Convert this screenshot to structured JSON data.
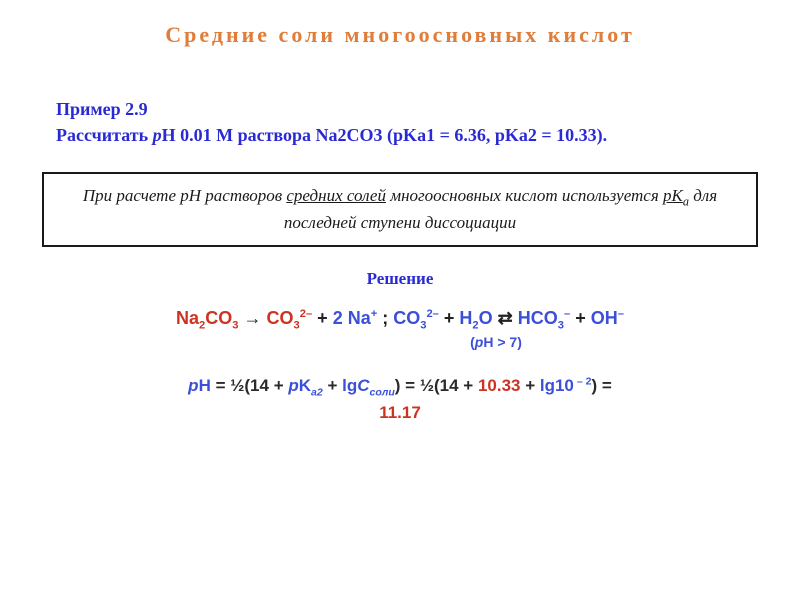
{
  "colors": {
    "title": "#e07d3a",
    "problem": "#2a2ad4",
    "rulebox_text": "#1a1a1a",
    "solution_label": "#2a2ad4",
    "eq_blue": "#3b4fd8",
    "eq_red": "#cc3322",
    "eq_black": "#222222",
    "formula_blue": "#3b4fd8",
    "formula_red": "#cc3322",
    "formula_black": "#2a2a2a"
  },
  "title": "Средние соли многоосновных кислот",
  "problem": {
    "line1": "Пример 2.9",
    "line2_a": "Рассчитать ",
    "line2_b_it": "p",
    "line2_c": "H 0.01 M раствора Na",
    "line2_d_sub": "2",
    "line2_e": "CO",
    "line2_f_sub": "3",
    "line2_g": " (pK",
    "line2_h_sub": "a1",
    "line2_i": " = 6.36, pK",
    "line2_j_sub": "a2",
    "line2_k": " = 10.33)."
  },
  "rulebox": {
    "a": "При расчете рН растворов ",
    "b_ul": "средних солей",
    "c": " многоосновных кислот используется ",
    "d_ul_a": "рК",
    "d_ul_sub": "a",
    "e": " для последней ступени диссоциации"
  },
  "solution_label": "Решение",
  "equation": {
    "na2co3": {
      "Na": "Na",
      "s2": "2",
      "CO": "CO",
      "s3": "3"
    },
    "arrow1": "  →  ",
    "co3": {
      "CO": "CO",
      "s3": "3",
      "ch": "2–"
    },
    "plus1": "  +  ",
    "two_na": {
      "two": "2 ",
      "Na": "Na",
      "ch": "+"
    },
    "semi": "; ",
    "co3_b": {
      "CO": "CO",
      "s3": "3",
      "ch": "2–"
    },
    "plus2": " + ",
    "h2o": {
      "H": "H",
      "s2": "2",
      "O": "O"
    },
    "rl": " ⇄ ",
    "hco3": {
      "H": "H",
      "CO": "CO",
      "s3": "3",
      "ch": "–"
    },
    "plus3": " + ",
    "oh": {
      "OH": "OH",
      "ch": "–"
    }
  },
  "ph_note": {
    "open": "(",
    "p_it": "p",
    "rest": "H > 7)"
  },
  "formula": {
    "pH": {
      "p": "p",
      "H": "H"
    },
    "eq1": "  =  ",
    "half1": "½(14  +  ",
    "pka2": {
      "p": "p",
      "K": "K",
      "sub": "a2"
    },
    "plus": "  +  ",
    "lgC": {
      "lg": "lg",
      "C": "C",
      "sub": "соли"
    },
    "close1": ")",
    "eq2": "  =  ",
    "half2": "½(14  +  ",
    "val_pka2": "10.33",
    "plus2": "  +  ",
    "lg10": "lg10",
    "exp": " – 2",
    "close2": ")",
    "eq3": "  =",
    "result": "11.17"
  }
}
